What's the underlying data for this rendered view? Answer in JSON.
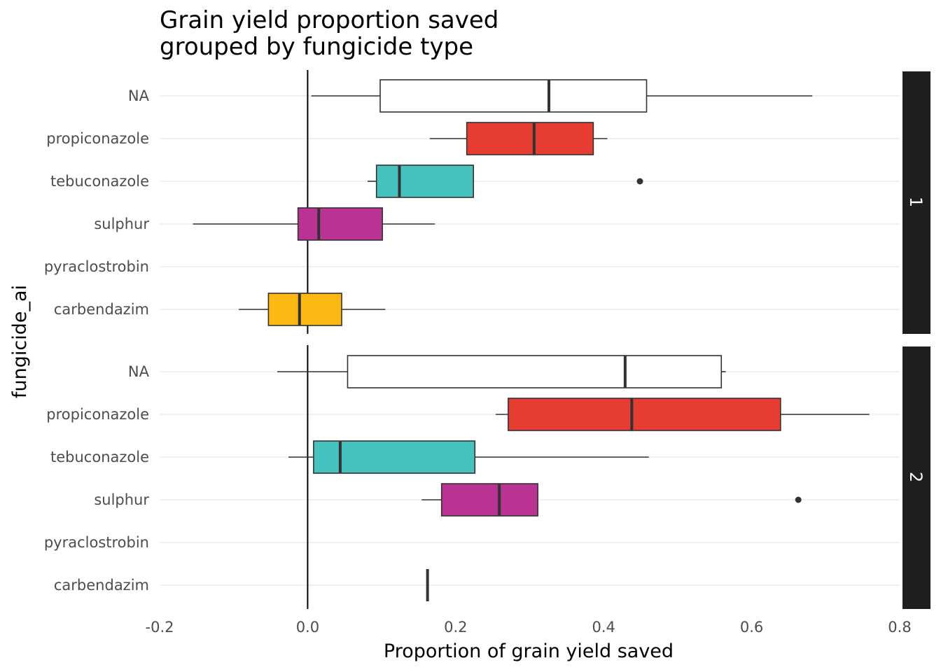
{
  "chart_data": {
    "type": "boxplot",
    "title": [
      "Grain yield proportion saved",
      "grouped by fungicide type"
    ],
    "xlabel": "Proportion of grain yield saved",
    "ylabel": "fungicide_ai",
    "xlim": [
      -0.2,
      0.8
    ],
    "xticks": [
      -0.2,
      0.0,
      0.2,
      0.4,
      0.6,
      0.8
    ],
    "xtick_labels": [
      "-0.2",
      "0.0",
      "0.2",
      "0.4",
      "0.6",
      "0.8"
    ],
    "reference_line_x": 0,
    "grid": "horizontal major gridlines",
    "legend": "none",
    "categories": [
      "NA",
      "propiconazole",
      "tebuconazole",
      "sulphur",
      "pyraclostrobin",
      "carbendazim"
    ],
    "category_colors": {
      "NA": "#ffffff",
      "propiconazole": "#e63d32",
      "tebuconazole": "#46c1bd",
      "sulphur": "#b83392",
      "pyraclostrobin": "#cccccc",
      "carbendazim": "#fdb913"
    },
    "panels": [
      {
        "strip": "1",
        "boxes": [
          {
            "category": "NA",
            "whisker_low": 0.005,
            "q1": 0.098,
            "median": 0.326,
            "q3": 0.458,
            "whisker_high": 0.682,
            "outliers": []
          },
          {
            "category": "propiconazole",
            "whisker_low": 0.165,
            "q1": 0.215,
            "median": 0.306,
            "q3": 0.386,
            "whisker_high": 0.405,
            "outliers": []
          },
          {
            "category": "tebuconazole",
            "whisker_low": 0.081,
            "q1": 0.093,
            "median": 0.124,
            "q3": 0.224,
            "whisker_high": 0.224,
            "outliers": [
              0.449
            ]
          },
          {
            "category": "sulphur",
            "whisker_low": -0.155,
            "q1": -0.013,
            "median": 0.015,
            "q3": 0.101,
            "whisker_high": 0.172,
            "outliers": []
          },
          {
            "category": "carbendazim",
            "whisker_low": -0.093,
            "q1": -0.053,
            "median": -0.011,
            "q3": 0.046,
            "whisker_high": 0.105,
            "outliers": []
          }
        ]
      },
      {
        "strip": "2",
        "boxes": [
          {
            "category": "NA",
            "whisker_low": -0.041,
            "q1": 0.054,
            "median": 0.429,
            "q3": 0.559,
            "whisker_high": 0.565,
            "outliers": []
          },
          {
            "category": "propiconazole",
            "whisker_low": 0.254,
            "q1": 0.271,
            "median": 0.438,
            "q3": 0.639,
            "whisker_high": 0.759,
            "outliers": []
          },
          {
            "category": "tebuconazole",
            "whisker_low": -0.026,
            "q1": 0.008,
            "median": 0.044,
            "q3": 0.226,
            "whisker_high": 0.461,
            "outliers": []
          },
          {
            "category": "sulphur",
            "whisker_low": 0.154,
            "q1": 0.181,
            "median": 0.259,
            "q3": 0.311,
            "whisker_high": 0.311,
            "outliers": [
              0.663
            ]
          },
          {
            "category": "carbendazim",
            "whisker_low": 0.162,
            "q1": 0.162,
            "median": 0.162,
            "q3": 0.162,
            "whisker_high": 0.162,
            "outliers": []
          }
        ]
      }
    ]
  }
}
